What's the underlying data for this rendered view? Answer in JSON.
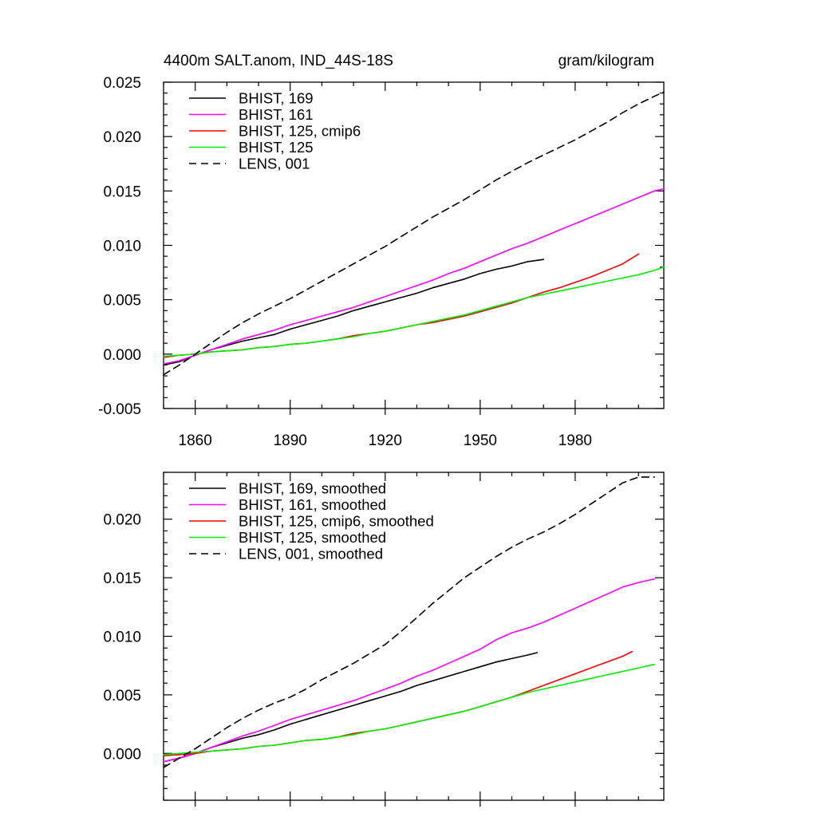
{
  "chart_data": [
    {
      "type": "line",
      "title": "4400m SALT.anom, IND_44S-18S",
      "units": "gram/kilogram",
      "xlabel": "",
      "ylabel": "",
      "xlim": [
        1850,
        2008
      ],
      "ylim": [
        -0.005,
        0.025
      ],
      "x_ticks": [
        1860,
        1890,
        1920,
        1950,
        1980
      ],
      "y_ticks": [
        -0.005,
        0.0,
        0.005,
        0.01,
        0.015,
        0.02,
        0.025
      ],
      "y_tick_labels": [
        "-0.005",
        "0.000",
        "0.005",
        "0.010",
        "0.015",
        "0.020",
        "0.025"
      ],
      "grid": false,
      "legend_position": "top-left",
      "series": [
        {
          "name": "BHIST, 169",
          "color": "#000000",
          "dash": "solid",
          "x": [
            1850,
            1855,
            1860,
            1865,
            1870,
            1875,
            1880,
            1885,
            1890,
            1895,
            1900,
            1905,
            1910,
            1915,
            1920,
            1925,
            1930,
            1935,
            1940,
            1945,
            1950,
            1955,
            1960,
            1965,
            1970
          ],
          "y": [
            -0.001,
            -0.0007,
            -0.0001,
            0.0004,
            0.0008,
            0.0012,
            0.0015,
            0.0018,
            0.0023,
            0.0027,
            0.0031,
            0.0035,
            0.004,
            0.0044,
            0.0048,
            0.0052,
            0.0056,
            0.0061,
            0.0065,
            0.0069,
            0.0074,
            0.0078,
            0.0081,
            0.0085,
            0.0087
          ]
        },
        {
          "name": "BHIST, 161",
          "color": "#ff00ff",
          "dash": "solid",
          "x": [
            1850,
            1855,
            1860,
            1865,
            1870,
            1875,
            1880,
            1885,
            1890,
            1895,
            1900,
            1905,
            1910,
            1915,
            1920,
            1925,
            1930,
            1935,
            1940,
            1945,
            1950,
            1955,
            1960,
            1965,
            1970,
            1975,
            1980,
            1985,
            1990,
            1995,
            2000,
            2005,
            2008
          ],
          "y": [
            -0.0009,
            -0.0006,
            -0.0001,
            0.0004,
            0.0009,
            0.0014,
            0.0018,
            0.0022,
            0.0027,
            0.0031,
            0.0035,
            0.0039,
            0.0043,
            0.0048,
            0.0053,
            0.0058,
            0.0063,
            0.0068,
            0.0074,
            0.0079,
            0.0085,
            0.0091,
            0.0097,
            0.0102,
            0.0108,
            0.0114,
            0.012,
            0.0126,
            0.0132,
            0.0138,
            0.0144,
            0.015,
            0.0152
          ]
        },
        {
          "name": "BHIST, 125, cmip6",
          "color": "#ff0000",
          "dash": "solid",
          "x": [
            1850,
            1855,
            1860,
            1865,
            1870,
            1875,
            1880,
            1885,
            1890,
            1895,
            1900,
            1905,
            1910,
            1915,
            1920,
            1925,
            1930,
            1935,
            1940,
            1945,
            1950,
            1955,
            1960,
            1965,
            1970,
            1975,
            1980,
            1985,
            1990,
            1995,
            2000
          ],
          "y": [
            -0.0003,
            -0.0001,
            0.0,
            0.0002,
            0.0003,
            0.0004,
            0.0006,
            0.0007,
            0.0009,
            0.001,
            0.0012,
            0.0014,
            0.0017,
            0.0019,
            0.0021,
            0.0024,
            0.0027,
            0.0029,
            0.0032,
            0.0035,
            0.0039,
            0.0043,
            0.0047,
            0.0052,
            0.0057,
            0.0061,
            0.0066,
            0.0071,
            0.0077,
            0.0083,
            0.0092
          ]
        },
        {
          "name": "BHIST, 125",
          "color": "#00ee00",
          "dash": "solid",
          "x": [
            1850,
            1855,
            1860,
            1865,
            1870,
            1875,
            1880,
            1885,
            1890,
            1895,
            1900,
            1905,
            1910,
            1915,
            1920,
            1925,
            1930,
            1935,
            1940,
            1945,
            1950,
            1955,
            1960,
            1965,
            1970,
            1975,
            1980,
            1985,
            1990,
            1995,
            2000,
            2005,
            2008
          ],
          "y": [
            -0.0002,
            -0.0001,
            0.0,
            0.0002,
            0.0003,
            0.0004,
            0.0006,
            0.0007,
            0.0009,
            0.001,
            0.0012,
            0.0014,
            0.0016,
            0.0019,
            0.0021,
            0.0024,
            0.0027,
            0.003,
            0.0033,
            0.0036,
            0.004,
            0.0044,
            0.0048,
            0.0052,
            0.0055,
            0.0058,
            0.0061,
            0.0064,
            0.0067,
            0.007,
            0.0073,
            0.0077,
            0.008
          ]
        },
        {
          "name": "LENS, 001",
          "color": "#000000",
          "dash": "dashed",
          "x": [
            1850,
            1855,
            1860,
            1865,
            1870,
            1875,
            1880,
            1885,
            1890,
            1895,
            1900,
            1905,
            1910,
            1915,
            1920,
            1925,
            1930,
            1935,
            1940,
            1945,
            1950,
            1955,
            1960,
            1965,
            1970,
            1975,
            1980,
            1985,
            1990,
            1995,
            2000,
            2005,
            2008
          ],
          "y": [
            -0.0019,
            -0.001,
            0.0,
            0.001,
            0.002,
            0.0029,
            0.0037,
            0.0044,
            0.0051,
            0.0059,
            0.0067,
            0.0075,
            0.0083,
            0.0091,
            0.0099,
            0.0108,
            0.0117,
            0.0126,
            0.0134,
            0.0142,
            0.0151,
            0.016,
            0.0168,
            0.0176,
            0.0183,
            0.019,
            0.0197,
            0.0205,
            0.0213,
            0.0222,
            0.023,
            0.0237,
            0.0241
          ]
        }
      ]
    },
    {
      "type": "line",
      "title": "",
      "xlabel": "",
      "ylabel": "",
      "xlim": [
        1850,
        2008
      ],
      "ylim": [
        -0.004,
        0.024
      ],
      "x_ticks": [
        1860,
        1890,
        1920,
        1950,
        1980
      ],
      "y_ticks": [
        0.0,
        0.005,
        0.01,
        0.015,
        0.02
      ],
      "y_tick_labels": [
        "0.000",
        "0.005",
        "0.010",
        "0.015",
        "0.020"
      ],
      "grid": false,
      "legend_position": "top-left",
      "series": [
        {
          "name": "BHIST, 169, smoothed",
          "color": "#000000",
          "dash": "solid",
          "x": [
            1850,
            1855,
            1860,
            1865,
            1870,
            1875,
            1880,
            1885,
            1890,
            1895,
            1900,
            1905,
            1910,
            1915,
            1920,
            1925,
            1930,
            1935,
            1940,
            1945,
            1950,
            1955,
            1960,
            1965,
            1968
          ],
          "y": [
            -0.0007,
            -0.0004,
            0.0,
            0.0005,
            0.0009,
            0.0013,
            0.0016,
            0.002,
            0.0025,
            0.0029,
            0.0033,
            0.0037,
            0.0041,
            0.0045,
            0.0049,
            0.0053,
            0.0058,
            0.0062,
            0.0066,
            0.007,
            0.0074,
            0.0078,
            0.0081,
            0.0084,
            0.0086
          ]
        },
        {
          "name": "BHIST, 161, smoothed",
          "color": "#ff00ff",
          "dash": "solid",
          "x": [
            1850,
            1855,
            1860,
            1865,
            1870,
            1875,
            1880,
            1885,
            1890,
            1895,
            1900,
            1905,
            1910,
            1915,
            1920,
            1925,
            1930,
            1935,
            1940,
            1945,
            1950,
            1955,
            1960,
            1965,
            1970,
            1975,
            1980,
            1985,
            1990,
            1995,
            2000,
            2005
          ],
          "y": [
            -0.0007,
            -0.0004,
            0.0,
            0.0005,
            0.001,
            0.0015,
            0.0019,
            0.0024,
            0.0029,
            0.0033,
            0.0037,
            0.0041,
            0.0045,
            0.005,
            0.0055,
            0.006,
            0.0066,
            0.0071,
            0.0077,
            0.0083,
            0.0089,
            0.0097,
            0.0103,
            0.0107,
            0.0112,
            0.0118,
            0.0124,
            0.013,
            0.0136,
            0.0142,
            0.0146,
            0.0149
          ]
        },
        {
          "name": "BHIST, 125, cmip6, smoothed",
          "color": "#ff0000",
          "dash": "solid",
          "x": [
            1850,
            1855,
            1860,
            1865,
            1870,
            1875,
            1880,
            1885,
            1890,
            1895,
            1900,
            1905,
            1910,
            1915,
            1920,
            1925,
            1930,
            1935,
            1940,
            1945,
            1950,
            1955,
            1960,
            1965,
            1970,
            1975,
            1980,
            1985,
            1990,
            1995,
            1998
          ],
          "y": [
            -0.0002,
            -0.0001,
            0.0,
            0.0002,
            0.0003,
            0.0004,
            0.0006,
            0.0007,
            0.0009,
            0.0011,
            0.0012,
            0.0014,
            0.0017,
            0.0019,
            0.0021,
            0.0024,
            0.0027,
            0.003,
            0.0033,
            0.0036,
            0.004,
            0.0044,
            0.0048,
            0.0053,
            0.0058,
            0.0063,
            0.0068,
            0.0073,
            0.0078,
            0.0083,
            0.0087
          ]
        },
        {
          "name": "BHIST, 125, smoothed",
          "color": "#00ee00",
          "dash": "solid",
          "x": [
            1850,
            1855,
            1860,
            1865,
            1870,
            1875,
            1880,
            1885,
            1890,
            1895,
            1900,
            1905,
            1910,
            1915,
            1920,
            1925,
            1930,
            1935,
            1940,
            1945,
            1950,
            1955,
            1960,
            1965,
            1970,
            1975,
            1980,
            1985,
            1990,
            1995,
            2000,
            2005
          ],
          "y": [
            -0.0001,
            0.0,
            0.0001,
            0.0002,
            0.0003,
            0.0004,
            0.0006,
            0.0007,
            0.0009,
            0.0011,
            0.0012,
            0.0014,
            0.0016,
            0.0019,
            0.0021,
            0.0024,
            0.0027,
            0.003,
            0.0033,
            0.0036,
            0.004,
            0.0044,
            0.0048,
            0.0052,
            0.0055,
            0.0058,
            0.0061,
            0.0064,
            0.0067,
            0.007,
            0.0073,
            0.0076
          ]
        },
        {
          "name": "LENS, 001, smoothed",
          "color": "#000000",
          "dash": "dashed",
          "x": [
            1850,
            1855,
            1860,
            1865,
            1870,
            1875,
            1880,
            1885,
            1890,
            1895,
            1900,
            1905,
            1910,
            1915,
            1920,
            1925,
            1930,
            1935,
            1940,
            1945,
            1950,
            1955,
            1960,
            1965,
            1970,
            1975,
            1980,
            1985,
            1990,
            1995,
            2000,
            2005
          ],
          "y": [
            -0.0012,
            -0.0004,
            0.0004,
            0.0013,
            0.0022,
            0.003,
            0.0037,
            0.0043,
            0.0048,
            0.0055,
            0.0063,
            0.007,
            0.0077,
            0.0085,
            0.0093,
            0.0104,
            0.0116,
            0.0128,
            0.0139,
            0.015,
            0.0159,
            0.0168,
            0.0176,
            0.0183,
            0.0189,
            0.0196,
            0.0204,
            0.0213,
            0.0222,
            0.0231,
            0.0236,
            0.0236
          ]
        }
      ]
    }
  ]
}
